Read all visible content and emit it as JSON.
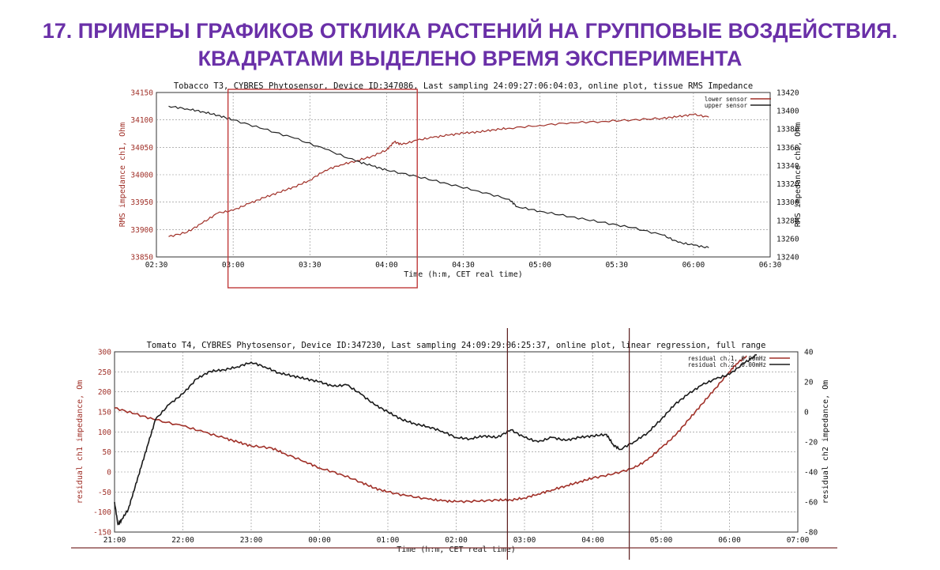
{
  "slide": {
    "title_line1": "17. ПРИМЕРЫ ГРАФИКОВ ОТКЛИКА РАСТЕНИЙ НА ГРУППОВЫЕ ВОЗДЕЙСТВИЯ.",
    "title_line2": "КВАДРАТАМИ ВЫДЕЛЕНО ВРЕМЯ  ЭКСПЕРИМЕНТА",
    "title_color": "#6a30a8"
  },
  "chart_data": [
    {
      "type": "line",
      "title": "Tobacco T3, CYBRES Phytosensor, Device ID:347086, Last sampling 24:09:27:06:04:03, online plot, tissue RMS Impedance",
      "xlabel": "Time (h:m, CET real time)",
      "ylabel_left": "RMS impedance ch1, Ohm",
      "ylabel_right": "RMS impedance ch2, Ohm",
      "x_ticks": [
        "02:30",
        "03:00",
        "03:30",
        "04:00",
        "04:30",
        "05:00",
        "05:30",
        "06:00",
        "06:30"
      ],
      "x_range_hours": [
        2.5,
        6.5
      ],
      "y_left_ticks": [
        "33850",
        "33900",
        "33950",
        "34000",
        "34050",
        "34100",
        "34150"
      ],
      "y_left_range": [
        33850,
        34150
      ],
      "y_right_ticks": [
        "13240",
        "13260",
        "13280",
        "13300",
        "13320",
        "13340",
        "13360",
        "13380",
        "13400",
        "13420"
      ],
      "y_right_range": [
        13240,
        13420
      ],
      "grid": true,
      "legend_position": "top-right",
      "series": [
        {
          "name": "lower sensor",
          "color": "#a03028",
          "axis": "left",
          "points": [
            [
              2.58,
              33887
            ],
            [
              2.7,
              33895
            ],
            [
              2.8,
              33912
            ],
            [
              2.9,
              33930
            ],
            [
              3.0,
              33935
            ],
            [
              3.1,
              33947
            ],
            [
              3.2,
              33958
            ],
            [
              3.3,
              33968
            ],
            [
              3.4,
              33978
            ],
            [
              3.5,
              33990
            ],
            [
              3.6,
              34008
            ],
            [
              3.7,
              34018
            ],
            [
              3.8,
              34025
            ],
            [
              3.9,
              34033
            ],
            [
              4.0,
              34045
            ],
            [
              4.05,
              34060
            ],
            [
              4.1,
              34055
            ],
            [
              4.2,
              34063
            ],
            [
              4.3,
              34068
            ],
            [
              4.4,
              34072
            ],
            [
              4.5,
              34076
            ],
            [
              4.6,
              34078
            ],
            [
              4.7,
              34082
            ],
            [
              4.8,
              34085
            ],
            [
              5.0,
              34090
            ],
            [
              5.2,
              34095
            ],
            [
              5.4,
              34097
            ],
            [
              5.6,
              34100
            ],
            [
              5.8,
              34103
            ],
            [
              5.9,
              34106
            ],
            [
              6.0,
              34110
            ],
            [
              6.1,
              34105
            ]
          ]
        },
        {
          "name": "upper sensor",
          "color": "#222222",
          "axis": "right",
          "points": [
            [
              2.58,
              13405
            ],
            [
              2.7,
              13402
            ],
            [
              2.8,
              13399
            ],
            [
              2.9,
              13395
            ],
            [
              3.0,
              13390
            ],
            [
              3.2,
              13380
            ],
            [
              3.4,
              13370
            ],
            [
              3.6,
              13358
            ],
            [
              3.8,
              13345
            ],
            [
              3.9,
              13340
            ],
            [
              4.0,
              13335
            ],
            [
              4.2,
              13328
            ],
            [
              4.4,
              13320
            ],
            [
              4.6,
              13312
            ],
            [
              4.8,
              13303
            ],
            [
              4.85,
              13295
            ],
            [
              5.0,
              13290
            ],
            [
              5.2,
              13284
            ],
            [
              5.4,
              13278
            ],
            [
              5.6,
              13272
            ],
            [
              5.8,
              13264
            ],
            [
              5.9,
              13256
            ],
            [
              6.0,
              13253
            ],
            [
              6.1,
              13250
            ]
          ]
        }
      ],
      "annotations": [
        {
          "type": "rectangle",
          "label": "experiment time",
          "x_start": "02:58",
          "x_end": "04:12",
          "color": "#c03a3a"
        }
      ]
    },
    {
      "type": "line",
      "title": "Tomato T4, CYBRES Phytosensor, Device ID:347230, Last sampling 24:09:29:06:25:37, online plot, linear regression, full range",
      "xlabel": "Time (h:m, CET real time)",
      "ylabel_left": "residual ch1 impedance, Om",
      "ylabel_right": "residual ch2 impedance, Om",
      "x_ticks": [
        "21:00",
        "22:00",
        "23:00",
        "00:00",
        "01:00",
        "02:00",
        "03:00",
        "04:00",
        "05:00",
        "06:00",
        "07:00"
      ],
      "x_range_hours": [
        21,
        31
      ],
      "y_left_ticks": [
        "-150",
        "-100",
        "-50",
        "0",
        "50",
        "100",
        "150",
        "200",
        "250",
        "300"
      ],
      "y_left_range": [
        -150,
        300
      ],
      "y_right_ticks": [
        "-80",
        "-60",
        "-40",
        "-20",
        "0",
        "20",
        "40"
      ],
      "y_right_range": [
        -80,
        40
      ],
      "grid": true,
      "legend_position": "top-right",
      "series": [
        {
          "name": "residual ch.1, 0.00mHz",
          "color": "#a03028",
          "axis": "left",
          "points": [
            [
              21.0,
              160
            ],
            [
              21.3,
              145
            ],
            [
              21.6,
              130
            ],
            [
              22.0,
              115
            ],
            [
              22.3,
              100
            ],
            [
              22.6,
              85
            ],
            [
              22.8,
              75
            ],
            [
              23.0,
              65
            ],
            [
              23.3,
              60
            ],
            [
              23.5,
              45
            ],
            [
              23.8,
              25
            ],
            [
              24.0,
              10
            ],
            [
              24.3,
              -5
            ],
            [
              24.6,
              -25
            ],
            [
              24.8,
              -40
            ],
            [
              25.0,
              -50
            ],
            [
              25.3,
              -60
            ],
            [
              25.6,
              -68
            ],
            [
              25.8,
              -72
            ],
            [
              26.0,
              -74
            ],
            [
              26.3,
              -73
            ],
            [
              26.6,
              -70
            ],
            [
              26.8,
              -70
            ],
            [
              27.0,
              -65
            ],
            [
              27.2,
              -55
            ],
            [
              27.4,
              -45
            ],
            [
              27.6,
              -35
            ],
            [
              27.8,
              -25
            ],
            [
              28.0,
              -15
            ],
            [
              28.3,
              -5
            ],
            [
              28.6,
              10
            ],
            [
              28.8,
              30
            ],
            [
              29.0,
              60
            ],
            [
              29.2,
              90
            ],
            [
              29.4,
              130
            ],
            [
              29.6,
              170
            ],
            [
              29.8,
              210
            ],
            [
              30.0,
              250
            ],
            [
              30.1,
              270
            ],
            [
              30.25,
              290
            ]
          ]
        },
        {
          "name": "residual ch.2, 0.00mHz",
          "color": "#1a1a1a",
          "axis": "right",
          "points": [
            [
              21.0,
              -60
            ],
            [
              21.05,
              -75
            ],
            [
              21.1,
              -72
            ],
            [
              21.2,
              -65
            ],
            [
              21.3,
              -50
            ],
            [
              21.4,
              -35
            ],
            [
              21.5,
              -20
            ],
            [
              21.6,
              -5
            ],
            [
              21.8,
              5
            ],
            [
              22.0,
              12
            ],
            [
              22.2,
              22
            ],
            [
              22.4,
              27
            ],
            [
              22.6,
              28
            ],
            [
              22.8,
              30
            ],
            [
              23.0,
              33
            ],
            [
              23.2,
              30
            ],
            [
              23.4,
              26
            ],
            [
              23.6,
              24
            ],
            [
              23.8,
              22
            ],
            [
              24.0,
              20
            ],
            [
              24.2,
              17
            ],
            [
              24.4,
              18
            ],
            [
              24.6,
              12
            ],
            [
              24.8,
              5
            ],
            [
              25.0,
              0
            ],
            [
              25.2,
              -5
            ],
            [
              25.4,
              -8
            ],
            [
              25.6,
              -10
            ],
            [
              25.8,
              -13
            ],
            [
              26.0,
              -17
            ],
            [
              26.2,
              -18
            ],
            [
              26.4,
              -16
            ],
            [
              26.6,
              -17
            ],
            [
              26.8,
              -12
            ],
            [
              27.0,
              -17
            ],
            [
              27.2,
              -20
            ],
            [
              27.4,
              -17
            ],
            [
              27.6,
              -19
            ],
            [
              27.8,
              -17
            ],
            [
              28.0,
              -16
            ],
            [
              28.2,
              -15
            ],
            [
              28.3,
              -22
            ],
            [
              28.4,
              -25
            ],
            [
              28.6,
              -20
            ],
            [
              28.8,
              -14
            ],
            [
              29.0,
              -5
            ],
            [
              29.2,
              5
            ],
            [
              29.4,
              12
            ],
            [
              29.6,
              18
            ],
            [
              29.8,
              22
            ],
            [
              30.0,
              25
            ],
            [
              30.2,
              32
            ],
            [
              30.4,
              38
            ]
          ]
        }
      ],
      "annotations": [
        {
          "type": "vertical-line",
          "x": "02:45",
          "color": "#5a1a1a"
        },
        {
          "type": "vertical-line",
          "x": "04:32",
          "color": "#5a1a1a"
        }
      ]
    }
  ]
}
